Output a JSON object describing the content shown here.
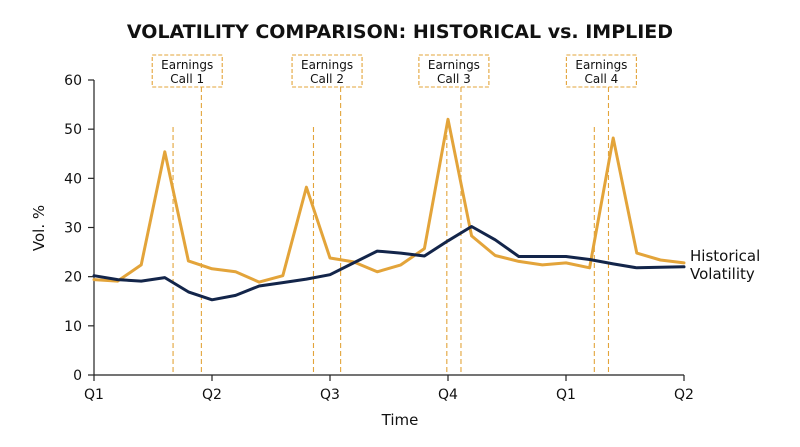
{
  "chart_data": {
    "type": "line",
    "title": "VOLATILITY COMPARISON: HISTORICAL vs. IMPLIED",
    "xlabel": "Time",
    "ylabel": "Vol. %",
    "ylim": [
      0,
      60
    ],
    "yticks": [
      "0",
      "10",
      "20",
      "30",
      "40",
      "50",
      "60"
    ],
    "xlim": [
      0,
      5
    ],
    "xticks": [
      {
        "pos": 0,
        "label": "Q1"
      },
      {
        "pos": 1,
        "label": "Q2"
      },
      {
        "pos": 2,
        "label": "Q3"
      },
      {
        "pos": 3,
        "label": "Q4"
      },
      {
        "pos": 4,
        "label": "Q1"
      },
      {
        "pos": 5,
        "label": "Q2"
      }
    ],
    "grid": false,
    "series": [
      {
        "name": "Historical Volatility",
        "color": "#13254a",
        "x": [
          0,
          0.2,
          0.4,
          0.6,
          0.8,
          1.0,
          1.2,
          1.4,
          1.6,
          1.8,
          2.0,
          2.2,
          2.4,
          2.6,
          2.8,
          3.0,
          3.2,
          3.4,
          3.6,
          3.8,
          4.0,
          4.2,
          4.4,
          4.6,
          4.8,
          5.0
        ],
        "values": [
          20.2,
          19.4,
          19.1,
          19.8,
          16.9,
          15.3,
          16.2,
          18.1,
          18.8,
          19.5,
          20.4,
          22.8,
          25.2,
          24.8,
          24.2,
          27.3,
          30.2,
          27.5,
          24.1,
          24.1,
          24.1,
          23.5,
          22.6,
          21.8,
          21.9,
          22.0
        ]
      },
      {
        "name": "",
        "color": "#e3a43a",
        "x": [
          0,
          0.2,
          0.4,
          0.6,
          0.8,
          1.0,
          1.2,
          1.4,
          1.6,
          1.8,
          2.0,
          2.2,
          2.4,
          2.6,
          2.8,
          3.0,
          3.2,
          3.4,
          3.6,
          3.8,
          4.0,
          4.2,
          4.4,
          4.6,
          4.8,
          5.0
        ],
        "values": [
          19.4,
          19.1,
          22.4,
          45.4,
          23.2,
          21.6,
          21.0,
          18.9,
          20.2,
          38.2,
          23.8,
          23.0,
          21.0,
          22.4,
          25.7,
          52.0,
          28.3,
          24.3,
          23.1,
          22.4,
          22.8,
          21.8,
          48.2,
          24.8,
          23.4,
          22.8
        ]
      }
    ],
    "series_end_label_lines": [
      "Historical",
      "Volatility"
    ],
    "annotations": [
      {
        "lines": [
          "Earnings",
          "Call 1"
        ],
        "range": [
          0.67,
          0.91
        ]
      },
      {
        "lines": [
          "Earnings",
          "Call 2"
        ],
        "range": [
          1.86,
          2.09
        ]
      },
      {
        "lines": [
          "Earnings",
          "Call 3"
        ],
        "range": [
          2.99,
          3.11
        ]
      },
      {
        "lines": [
          "Earnings",
          "Call 4"
        ],
        "range": [
          4.24,
          4.36
        ]
      }
    ]
  }
}
